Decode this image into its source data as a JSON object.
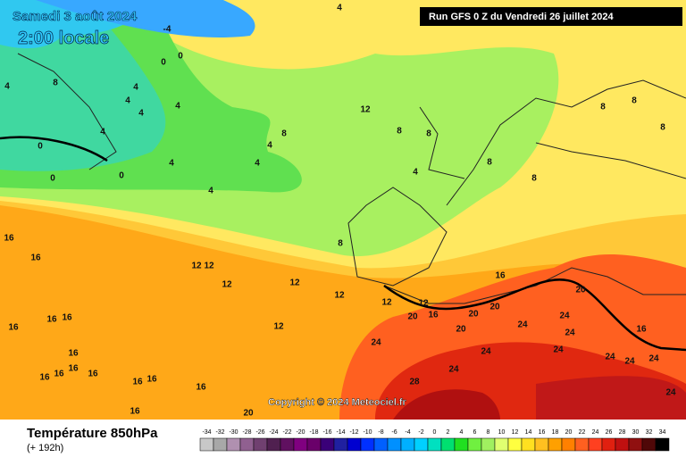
{
  "header": {
    "date": "Samedi 3 août 2024",
    "time": "2:00 locale",
    "run": "Run GFS 0 Z du Vendredi 26 juillet 2024"
  },
  "copyright": "Copyright © 2024 Meteociel.fr",
  "footer": {
    "title": "Température 850hPa",
    "lead": "(+ 192h)"
  },
  "contour_labels": [
    "4",
    "-4",
    "0",
    "0",
    "4",
    "8",
    "4",
    "4",
    "4",
    "4",
    "4",
    "8",
    "12",
    "8",
    "8",
    "4",
    "4",
    "4",
    "0",
    "0",
    "0",
    "4",
    "4",
    "8",
    "8",
    "8",
    "8",
    "8",
    "8",
    "16",
    "16",
    "12",
    "12",
    "12",
    "12",
    "12",
    "12",
    "12",
    "20",
    "16",
    "20",
    "20",
    "20",
    "24",
    "24",
    "20",
    "24",
    "24",
    "24",
    "28",
    "24",
    "24",
    "24",
    "16",
    "16",
    "16",
    "16",
    "16",
    "16",
    "16",
    "16",
    "16",
    "16",
    "16",
    "16",
    "16",
    "20",
    "12",
    "16",
    "24",
    "24",
    "24"
  ],
  "legend": {
    "values": [
      -34,
      -32,
      -30,
      -28,
      -26,
      -24,
      -22,
      -20,
      -18,
      -16,
      -14,
      -12,
      -10,
      -8,
      -6,
      -4,
      -2,
      0,
      2,
      4,
      6,
      8,
      10,
      12,
      14,
      16,
      18,
      20,
      22,
      24,
      26,
      28,
      30,
      32,
      34
    ],
    "colors": [
      "#c8c8c8",
      "#a8a8a8",
      "#b090b0",
      "#906090",
      "#704070",
      "#502050",
      "#601060",
      "#800080",
      "#6a006a",
      "#3a0078",
      "#2020a0",
      "#0000d0",
      "#0030ff",
      "#0060ff",
      "#0090ff",
      "#00b0ff",
      "#00d0ff",
      "#00e0c0",
      "#00e070",
      "#20e020",
      "#70f040",
      "#a0f060",
      "#e0ff70",
      "#ffff40",
      "#ffe020",
      "#ffc020",
      "#ffa000",
      "#ff8000",
      "#ff6020",
      "#ff4020",
      "#e02010",
      "#c01010",
      "#901010",
      "#500808",
      "#000000"
    ]
  }
}
